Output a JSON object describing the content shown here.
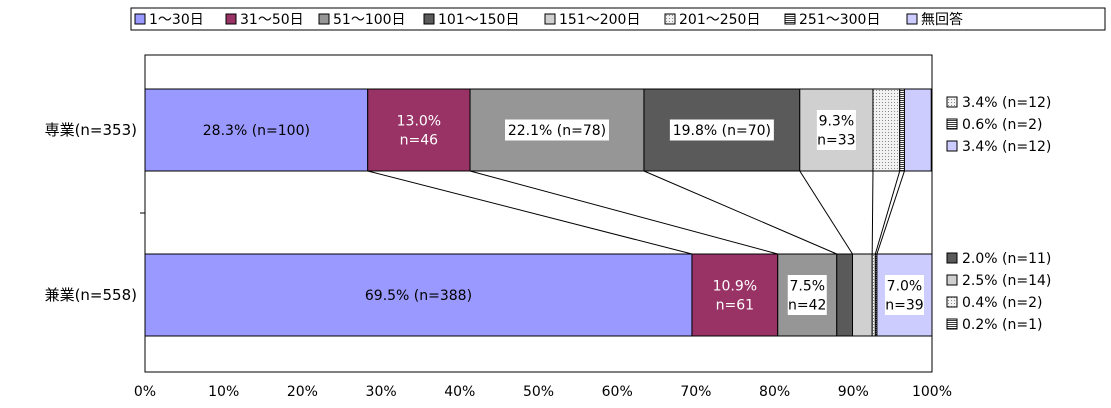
{
  "chart_data": {
    "type": "bar",
    "orientation": "horizontal",
    "stacked": "percent",
    "legend_position": "top",
    "grid": false,
    "xlim": [
      0,
      100
    ],
    "x_ticks": [
      "0%",
      "10%",
      "20%",
      "30%",
      "40%",
      "50%",
      "60%",
      "70%",
      "80%",
      "90%",
      "100%"
    ],
    "categories": [
      "専業(n=353)",
      "兼業(n=558)"
    ],
    "series": [
      {
        "name": "1〜30日",
        "color": "#9999ff",
        "pattern": "solid",
        "values": [
          28.3,
          69.5
        ],
        "labels": [
          "28.3% (n=100)",
          "69.5% (n=388)"
        ]
      },
      {
        "name": "31〜50日",
        "color": "#993366",
        "pattern": "solid",
        "values": [
          13.0,
          10.9
        ],
        "labels": [
          "13.0%\nn=46",
          "10.9%\nn=61"
        ]
      },
      {
        "name": "51〜100日",
        "color": "#969696",
        "pattern": "solid",
        "values": [
          22.1,
          7.5
        ],
        "labels": [
          "22.1% (n=78)",
          "7.5%\nn=42"
        ]
      },
      {
        "name": "101〜150日",
        "color": "#5a5a5a",
        "pattern": "solid",
        "values": [
          19.8,
          2.0
        ],
        "labels": [
          "19.8% (n=70)",
          "2.0% (n=11)"
        ]
      },
      {
        "name": "151〜200日",
        "color": "#d0d0d0",
        "pattern": "solid",
        "values": [
          9.3,
          2.5
        ],
        "labels": [
          "9.3%\nn=33",
          "2.5% (n=14)"
        ]
      },
      {
        "name": "201〜250日",
        "color": "#ebebeb",
        "pattern": "dots",
        "values": [
          3.4,
          0.4
        ],
        "labels": [
          "3.4% (n=12)",
          "0.4% (n=2)"
        ]
      },
      {
        "name": "251〜300日",
        "color": "#7a7a7a",
        "pattern": "hstripe",
        "values": [
          0.6,
          0.2
        ],
        "labels": [
          "0.6% (n=2)",
          "0.2% (n=1)"
        ]
      },
      {
        "name": "無回答",
        "color": "#ccccff",
        "pattern": "solid",
        "values": [
          3.4,
          7.0
        ],
        "labels": [
          "3.4% (n=12)",
          "7.0%\nn=39"
        ]
      }
    ],
    "inside_labels": [
      [
        0,
        1,
        2,
        3,
        4
      ],
      [
        0,
        1,
        2,
        7
      ]
    ],
    "outside_labels": [
      [
        5,
        6,
        7
      ],
      [
        3,
        4,
        5,
        6
      ]
    ],
    "xlabel": "",
    "ylabel": ""
  }
}
